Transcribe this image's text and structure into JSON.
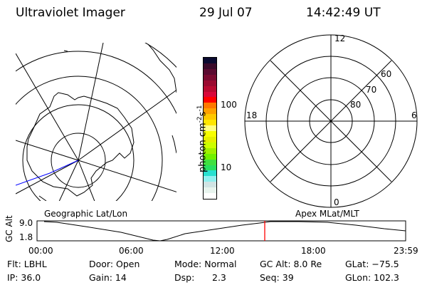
{
  "header": {
    "instrument": "Ultraviolet Imager",
    "date": "29 Jul 07",
    "time": "14:42:49 UT"
  },
  "colorbar": {
    "label": "photon cm",
    "label_exp1": "-2",
    "label_mid": "s",
    "label_exp2": "-1",
    "ticks": [
      "100",
      "10"
    ],
    "colors": [
      "#0a0a30",
      "#3a0a2a",
      "#5a0a30",
      "#7a0a30",
      "#9a0a30",
      "#b80a30",
      "#d8083a",
      "#ff0000",
      "#ff7800",
      "#ffa000",
      "#ffc800",
      "#ffe600",
      "#ffff80",
      "#f8ff00",
      "#e6f000",
      "#ccff00",
      "#a0f000",
      "#70f000",
      "#40e040",
      "#28e060",
      "#28e0d0",
      "#90f0f0",
      "#d0e4e4",
      "#e8f4ee",
      "#ffffff"
    ]
  },
  "polar_plot": {
    "mlt_labels": {
      "top": "12",
      "left": "18",
      "right": "6",
      "bottom": "0"
    },
    "lat_labels": [
      "60",
      "70",
      "80"
    ]
  },
  "timeline": {
    "left_label": "Geographic Lat/Lon",
    "right_label": "Apex MLat/MLT",
    "y_axis_label": "GC Alt",
    "y_ticks": [
      "9.0",
      "1.8"
    ],
    "x_ticks": [
      "00:00",
      "06:00",
      "12:00",
      "18:00",
      "23:59"
    ],
    "current_marker_color": "#ff0000"
  },
  "info": {
    "flt": "Flt: LBHL",
    "ip": "IP: 36.0",
    "door": "Door: Open",
    "gain": "Gain: 14",
    "mode": "Mode: Normal",
    "dsp_label": "Dsp:",
    "dsp_value": "2.3",
    "gc_alt": "GC Alt: 8.0 Re",
    "seq": "Seq: 39",
    "glat": "GLat: −75.5",
    "glon": "GLon: 102.3"
  }
}
